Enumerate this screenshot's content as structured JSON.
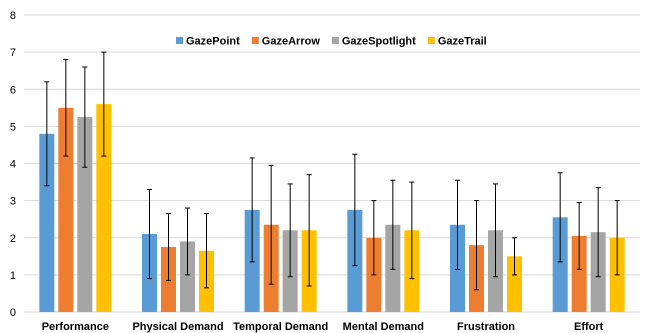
{
  "chart_data": {
    "type": "bar",
    "title": "",
    "xlabel": "",
    "ylabel": "",
    "ylim": [
      0,
      8
    ],
    "yticks": [
      0,
      1,
      2,
      3,
      4,
      5,
      6,
      7,
      8
    ],
    "grid": true,
    "legend_position": "top-center",
    "categories": [
      "Performance",
      "Physical Demand",
      "Temporal Demand",
      "Mental Demand",
      "Frustration",
      "Effort"
    ],
    "series": [
      {
        "name": "GazePoint",
        "color": "#5b9bd5",
        "values": [
          4.8,
          2.1,
          2.75,
          2.75,
          2.35,
          2.55
        ],
        "errors": [
          1.4,
          1.2,
          1.4,
          1.5,
          1.2,
          1.2
        ]
      },
      {
        "name": "GazeArrow",
        "color": "#ed7d31",
        "values": [
          5.5,
          1.75,
          2.35,
          2.0,
          1.8,
          2.05
        ],
        "errors": [
          1.3,
          0.9,
          1.6,
          1.0,
          1.2,
          0.9
        ]
      },
      {
        "name": "GazeSpotlight",
        "color": "#a5a5a5",
        "values": [
          5.25,
          1.9,
          2.2,
          2.35,
          2.2,
          2.15
        ],
        "errors": [
          1.35,
          0.9,
          1.25,
          1.2,
          1.25,
          1.2
        ]
      },
      {
        "name": "GazeTrail",
        "color": "#ffc000",
        "values": [
          5.6,
          1.65,
          2.2,
          2.2,
          1.5,
          2.0
        ],
        "errors": [
          1.4,
          1.0,
          1.5,
          1.3,
          0.5,
          1.0
        ]
      }
    ]
  }
}
